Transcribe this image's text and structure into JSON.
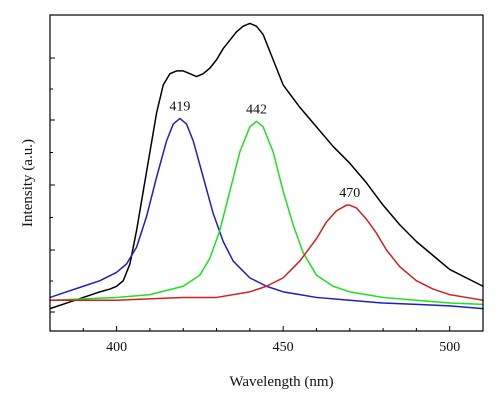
{
  "chart_data": {
    "type": "line",
    "xlabel": "Wavelength (nm)",
    "ylabel": "Intensity (a.u.)",
    "xlim": [
      380,
      510
    ],
    "ylim": [
      -0.08,
      1.05
    ],
    "x_ticks": [
      400,
      450,
      500
    ],
    "y_ticks_count": 5,
    "grid": false,
    "legend": "none",
    "series": [
      {
        "color": "#000000",
        "x": [
          380,
          385,
          390,
          395,
          398,
          400,
          402,
          404,
          406,
          408,
          410,
          412,
          414,
          416,
          418,
          420,
          422,
          424,
          426,
          428,
          430,
          432,
          434,
          436,
          438,
          440,
          442,
          444,
          446,
          448,
          450,
          455,
          460,
          465,
          470,
          475,
          480,
          485,
          490,
          495,
          500,
          505,
          510
        ],
        "y": [
          0.0,
          0.02,
          0.04,
          0.06,
          0.07,
          0.08,
          0.1,
          0.16,
          0.28,
          0.42,
          0.56,
          0.7,
          0.8,
          0.84,
          0.85,
          0.85,
          0.84,
          0.83,
          0.84,
          0.86,
          0.89,
          0.93,
          0.96,
          0.99,
          1.01,
          1.02,
          1.01,
          0.98,
          0.92,
          0.86,
          0.8,
          0.72,
          0.65,
          0.58,
          0.52,
          0.45,
          0.37,
          0.3,
          0.24,
          0.19,
          0.14,
          0.11,
          0.08
        ]
      },
      {
        "color": "#1f1fbf",
        "x": [
          380,
          385,
          390,
          395,
          400,
          403,
          406,
          409,
          412,
          415,
          417,
          419,
          421,
          423,
          426,
          429,
          432,
          435,
          440,
          445,
          450,
          455,
          460,
          470,
          480,
          490,
          500,
          510
        ],
        "y": [
          0.04,
          0.06,
          0.08,
          0.1,
          0.13,
          0.16,
          0.22,
          0.33,
          0.47,
          0.6,
          0.66,
          0.68,
          0.66,
          0.6,
          0.47,
          0.34,
          0.24,
          0.17,
          0.11,
          0.08,
          0.06,
          0.05,
          0.04,
          0.03,
          0.02,
          0.015,
          0.01,
          0.0
        ]
      },
      {
        "color": "#1fe01f",
        "x": [
          380,
          390,
          400,
          410,
          420,
          425,
          428,
          431,
          434,
          437,
          440,
          442,
          444,
          447,
          450,
          453,
          456,
          460,
          465,
          470,
          480,
          490,
          500,
          510
        ],
        "y": [
          0.03,
          0.035,
          0.04,
          0.05,
          0.08,
          0.12,
          0.18,
          0.28,
          0.42,
          0.56,
          0.65,
          0.67,
          0.65,
          0.56,
          0.42,
          0.3,
          0.2,
          0.12,
          0.08,
          0.06,
          0.04,
          0.03,
          0.02,
          0.015
        ]
      },
      {
        "color": "#d41f1f",
        "x": [
          380,
          400,
          420,
          430,
          440,
          445,
          450,
          455,
          460,
          463,
          466,
          469,
          470,
          472,
          475,
          478,
          481,
          485,
          490,
          495,
          500,
          505,
          510
        ],
        "y": [
          0.03,
          0.03,
          0.04,
          0.04,
          0.06,
          0.08,
          0.11,
          0.17,
          0.25,
          0.31,
          0.35,
          0.37,
          0.37,
          0.36,
          0.32,
          0.27,
          0.21,
          0.15,
          0.1,
          0.07,
          0.05,
          0.04,
          0.03
        ]
      }
    ],
    "annotations": [
      {
        "text": "419",
        "x": 419,
        "y": 0.68
      },
      {
        "text": "442",
        "x": 442,
        "y": 0.67
      },
      {
        "text": "470",
        "x": 470,
        "y": 0.37
      }
    ]
  }
}
